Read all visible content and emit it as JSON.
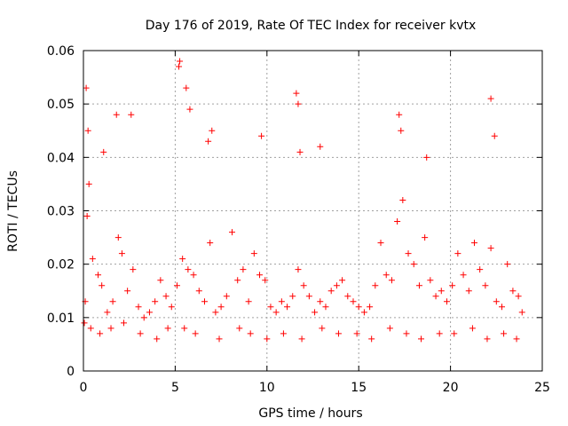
{
  "chart_data": {
    "type": "scatter",
    "title": "Day 176 of 2019, Rate Of TEC Index for receiver kvtx",
    "xlabel": "GPS time / hours",
    "ylabel": "ROTI / TECUs",
    "xlim": [
      0,
      25
    ],
    "ylim": [
      0,
      0.06
    ],
    "x_ticks": [
      0,
      5,
      10,
      15,
      20,
      25
    ],
    "x_tick_labels": [
      "0",
      "5",
      "10",
      "15",
      "20",
      "25"
    ],
    "y_ticks": [
      0,
      0.01,
      0.02,
      0.03,
      0.04,
      0.05,
      0.06
    ],
    "y_tick_labels": [
      "0",
      "0.01",
      "0.02",
      "0.03",
      "0.04",
      "0.05",
      "0.06"
    ],
    "grid": true,
    "marker": "+",
    "color": "#ff0000",
    "series": [
      {
        "name": "ROTI",
        "x": [
          0.1,
          0.2,
          0.3,
          0.5,
          0.8,
          1.0,
          1.3,
          1.6,
          1.9,
          2.1,
          2.4,
          2.7,
          3.0,
          3.3,
          3.6,
          3.9,
          4.2,
          4.5,
          4.8,
          5.1,
          5.4,
          5.7,
          6.0,
          6.3,
          6.6,
          6.9,
          7.2,
          7.5,
          7.8,
          8.1,
          8.4,
          8.7,
          9.0,
          9.3,
          9.6,
          9.9,
          10.2,
          10.5,
          10.8,
          11.1,
          11.4,
          11.7,
          12.0,
          12.3,
          12.6,
          12.9,
          13.2,
          13.5,
          13.8,
          14.1,
          14.4,
          14.7,
          15.0,
          15.3,
          15.6,
          15.9,
          16.2,
          16.5,
          16.8,
          17.1,
          17.4,
          17.7,
          18.0,
          18.3,
          18.6,
          18.9,
          19.2,
          19.5,
          19.8,
          20.1,
          20.4,
          20.7,
          21.0,
          21.3,
          21.6,
          21.9,
          22.2,
          22.5,
          22.8,
          23.1,
          23.4,
          23.7,
          23.9,
          0.15,
          0.25,
          1.1,
          1.8,
          2.6,
          5.2,
          5.25,
          5.6,
          5.8,
          6.8,
          7.0,
          9.7,
          11.6,
          11.7,
          11.8,
          12.9,
          17.2,
          17.3,
          18.7,
          22.2,
          22.4,
          0.05,
          0.4,
          0.9,
          1.5,
          2.2,
          3.1,
          4.0,
          4.6,
          5.5,
          6.1,
          7.4,
          8.5,
          9.1,
          10.0,
          10.9,
          11.9,
          13.0,
          13.9,
          14.9,
          15.7,
          16.7,
          17.6,
          18.4,
          19.4,
          20.2,
          21.2,
          22.0,
          22.9,
          23.6
        ],
        "y": [
          0.013,
          0.029,
          0.035,
          0.021,
          0.018,
          0.016,
          0.011,
          0.013,
          0.025,
          0.022,
          0.015,
          0.019,
          0.012,
          0.01,
          0.011,
          0.013,
          0.017,
          0.014,
          0.012,
          0.016,
          0.021,
          0.019,
          0.018,
          0.015,
          0.013,
          0.024,
          0.011,
          0.012,
          0.014,
          0.026,
          0.017,
          0.019,
          0.013,
          0.022,
          0.018,
          0.017,
          0.012,
          0.011,
          0.013,
          0.012,
          0.014,
          0.019,
          0.016,
          0.014,
          0.011,
          0.013,
          0.012,
          0.015,
          0.016,
          0.017,
          0.014,
          0.013,
          0.012,
          0.011,
          0.012,
          0.016,
          0.024,
          0.018,
          0.017,
          0.028,
          0.032,
          0.022,
          0.02,
          0.016,
          0.025,
          0.017,
          0.014,
          0.015,
          0.013,
          0.016,
          0.022,
          0.018,
          0.015,
          0.024,
          0.019,
          0.016,
          0.023,
          0.013,
          0.012,
          0.02,
          0.015,
          0.014,
          0.011,
          0.053,
          0.045,
          0.041,
          0.048,
          0.048,
          0.057,
          0.058,
          0.053,
          0.049,
          0.043,
          0.045,
          0.044,
          0.052,
          0.05,
          0.041,
          0.042,
          0.048,
          0.045,
          0.04,
          0.051,
          0.044,
          0.009,
          0.008,
          0.007,
          0.008,
          0.009,
          0.007,
          0.006,
          0.008,
          0.008,
          0.007,
          0.006,
          0.008,
          0.007,
          0.006,
          0.007,
          0.006,
          0.008,
          0.007,
          0.007,
          0.006,
          0.008,
          0.007,
          0.006,
          0.007,
          0.007,
          0.008,
          0.006,
          0.007,
          0.006
        ]
      }
    ]
  }
}
